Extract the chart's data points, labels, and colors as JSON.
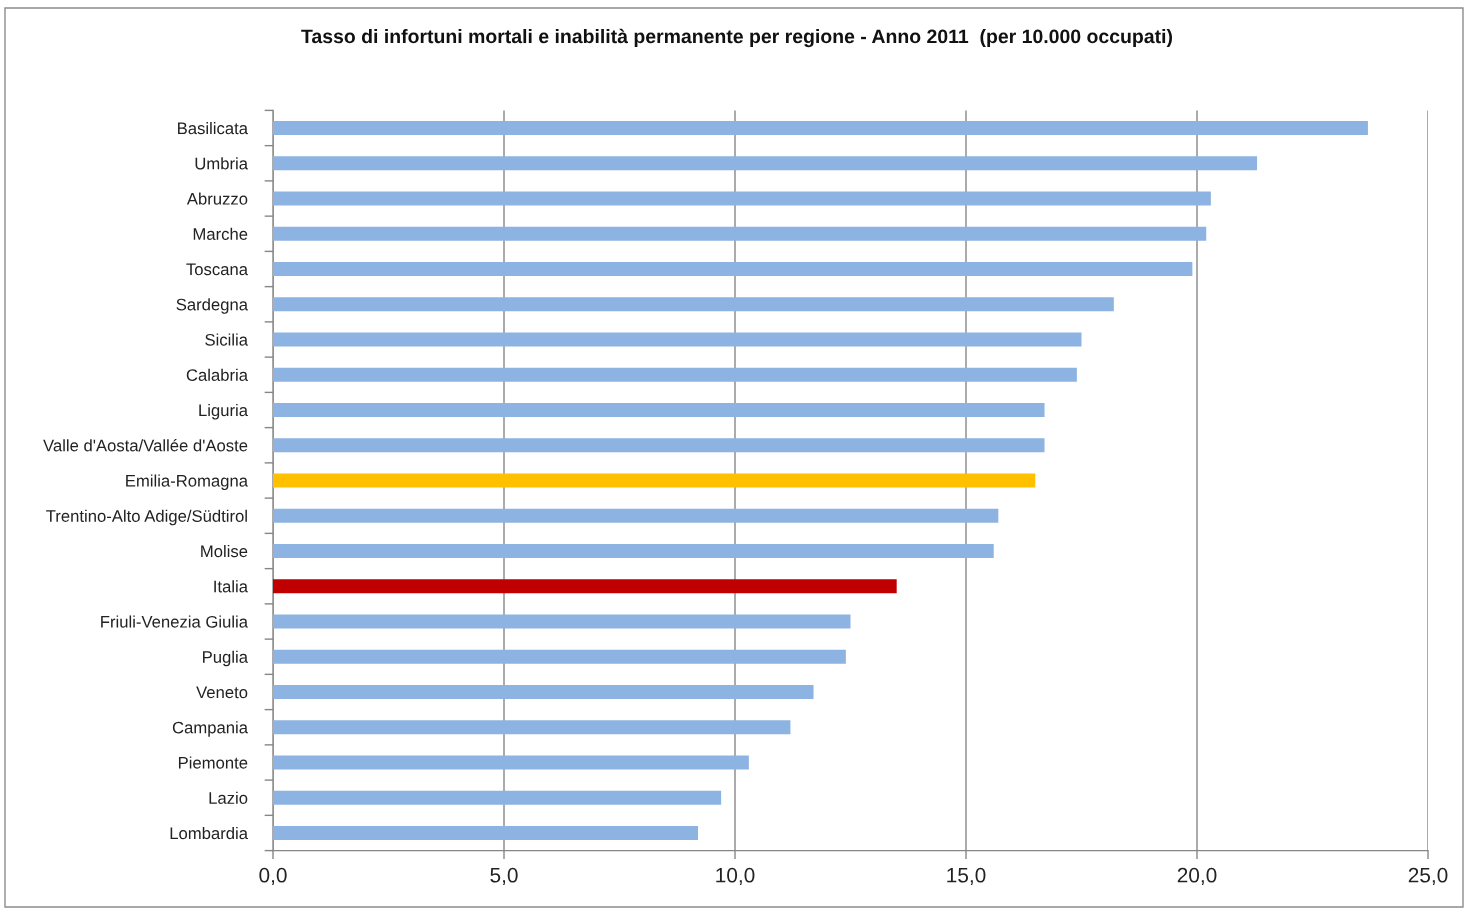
{
  "chart_data": {
    "type": "bar",
    "orientation": "horizontal",
    "title": "Tasso di infortuni mortali e inabilità permanente per regione - Anno 2011  (per 10.000 occupati)",
    "categories": [
      "Basilicata",
      "Umbria",
      "Abruzzo",
      "Marche",
      "Toscana",
      "Sardegna",
      "Sicilia",
      "Calabria",
      "Liguria",
      "Valle d'Aosta/Vallée d'Aoste",
      "Emilia-Romagna",
      "Trentino-Alto Adige/Südtirol",
      "Molise",
      "Italia",
      "Friuli-Venezia Giulia",
      "Puglia",
      "Veneto",
      "Campania",
      "Piemonte",
      "Lazio",
      "Lombardia"
    ],
    "values": [
      23.7,
      21.3,
      20.3,
      20.2,
      19.9,
      18.2,
      17.5,
      17.4,
      16.7,
      16.7,
      16.5,
      15.7,
      15.6,
      13.5,
      12.5,
      12.4,
      11.7,
      11.2,
      10.3,
      9.7,
      9.2
    ],
    "colors": [
      "#8db3e2",
      "#8db3e2",
      "#8db3e2",
      "#8db3e2",
      "#8db3e2",
      "#8db3e2",
      "#8db3e2",
      "#8db3e2",
      "#8db3e2",
      "#8db3e2",
      "#ffc000",
      "#8db3e2",
      "#8db3e2",
      "#c00000",
      "#8db3e2",
      "#8db3e2",
      "#8db3e2",
      "#8db3e2",
      "#8db3e2",
      "#8db3e2",
      "#8db3e2"
    ],
    "xlim": [
      0,
      25
    ],
    "xticks": [
      {
        "value": 0,
        "label": "0,0"
      },
      {
        "value": 5,
        "label": "5,0"
      },
      {
        "value": 10,
        "label": "10,0"
      },
      {
        "value": 15,
        "label": "15,0"
      },
      {
        "value": 20,
        "label": "20,0"
      },
      {
        "value": 25,
        "label": "25,0"
      }
    ],
    "grid": "x"
  }
}
